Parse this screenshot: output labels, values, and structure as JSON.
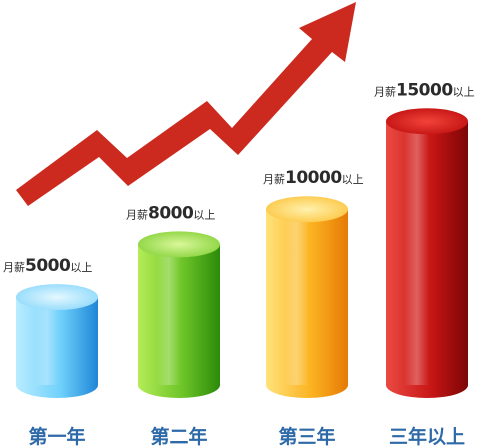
{
  "chart_data": {
    "type": "bar",
    "categories": [
      "第一年",
      "第二年",
      "第三年",
      "三年以上"
    ],
    "values": [
      5000,
      8000,
      10000,
      15000
    ],
    "data_labels": [
      {
        "prefix": "月薪",
        "value": "5000",
        "suffix": "以上"
      },
      {
        "prefix": "月薪",
        "value": "8000",
        "suffix": "以上"
      },
      {
        "prefix": "月薪",
        "value": "10000",
        "suffix": "以上"
      },
      {
        "prefix": "月薪",
        "value": "15000",
        "suffix": "以上"
      }
    ],
    "title": "",
    "xlabel": "",
    "ylabel": "",
    "ylim": [
      0,
      17000
    ],
    "grid": false,
    "legend": "none",
    "bar_style": "3d-cylinder",
    "trend_arrow": "rising-zigzag",
    "colors": {
      "bars": [
        "#5cc4f5",
        "#68c22a",
        "#f8a615",
        "#c81010"
      ],
      "arrow": "#cc2a1f",
      "category_text": "#2e6aa8"
    }
  }
}
